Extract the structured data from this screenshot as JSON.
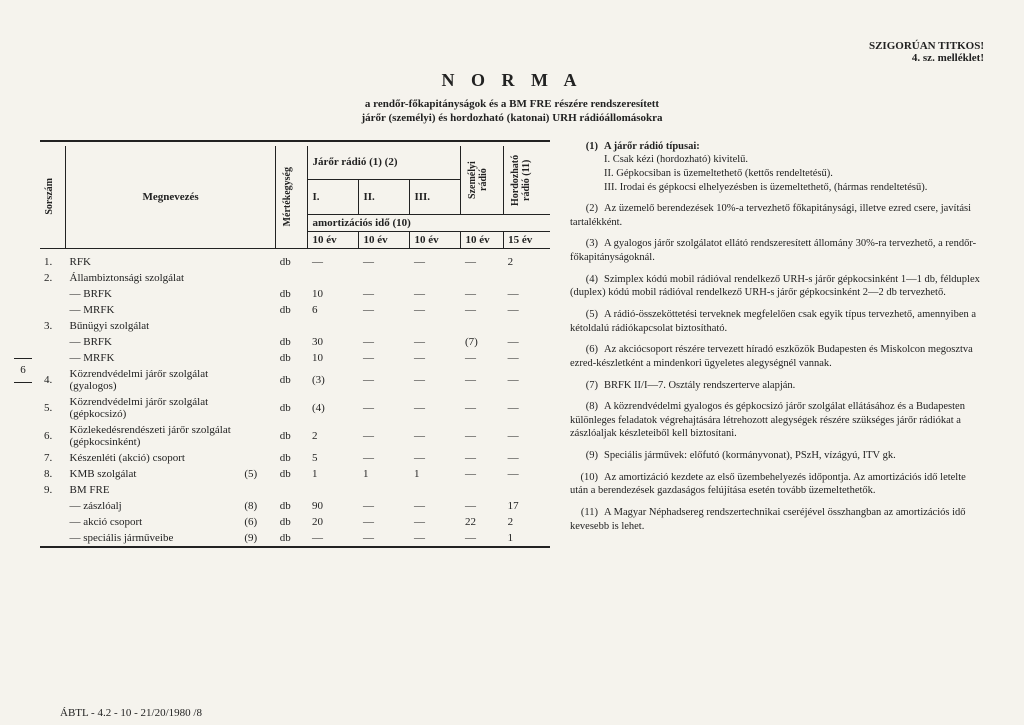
{
  "header": {
    "classification": "SZIGORÚAN TITKOS!",
    "attachment": "4. sz. melléklet!",
    "title": "N O R M A",
    "subtitle1": "a rendőr-főkapitányságok és a BM FRE részére rendszeresített",
    "subtitle2": "járőr (személyi) és hordozható (katonai) URH rádióállomásokra"
  },
  "table": {
    "head": {
      "sorszam": "Sorszám",
      "megnevezes": "Megnevezés",
      "mertek": "Mértékegység",
      "jaror": "Járőr rádió (1) (2)",
      "szemelyi": "Személyi rádió",
      "hordoz": "Hordozható rádió (11)",
      "c1": "I.",
      "c2": "II.",
      "c3": "III.",
      "amort": "amortizációs idő (10)",
      "y1": "10 év",
      "y2": "10 év",
      "y3": "10 év",
      "y4": "10 év",
      "y5": "15 év"
    },
    "rows": [
      {
        "n": "1.",
        "name": "RFK",
        "u": "db",
        "v": [
          "—",
          "—",
          "—",
          "—",
          "2"
        ]
      },
      {
        "n": "2.",
        "name": "Állambiztonsági szolgálat",
        "u": "",
        "v": [
          "",
          "",
          "",
          "",
          ""
        ]
      },
      {
        "n": "",
        "name": "— BRFK",
        "u": "db",
        "v": [
          "10",
          "—",
          "—",
          "—",
          "—"
        ],
        "ind": 1
      },
      {
        "n": "",
        "name": "— MRFK",
        "u": "db",
        "v": [
          "6",
          "—",
          "—",
          "—",
          "—"
        ],
        "ind": 1
      },
      {
        "n": "3.",
        "name": "Bűnügyi szolgálat",
        "u": "",
        "v": [
          "",
          "",
          "",
          "",
          ""
        ]
      },
      {
        "n": "",
        "name": "— BRFK",
        "u": "db",
        "v": [
          "30",
          "—",
          "—",
          "(7)",
          "—"
        ],
        "ind": 1
      },
      {
        "n": "",
        "name": "— MRFK",
        "u": "db",
        "v": [
          "10",
          "—",
          "—",
          "—",
          "—"
        ],
        "ind": 1
      },
      {
        "n": "4.",
        "name": "Közrendvédelmi járőr szolgálat (gyalogos)",
        "u": "db",
        "v": [
          "(3)",
          "—",
          "—",
          "—",
          "—"
        ]
      },
      {
        "n": "5.",
        "name": "Közrendvédelmi járőr szolgálat (gépkocsizó)",
        "u": "db",
        "v": [
          "(4)",
          "—",
          "—",
          "—",
          "—"
        ]
      },
      {
        "n": "6.",
        "name": "Közlekedésrendészeti járőr szolgálat (gépkocsinként)",
        "u": "db",
        "v": [
          "2",
          "—",
          "—",
          "—",
          "—"
        ]
      },
      {
        "n": "7.",
        "name": "Készenléti (akció) csoport",
        "u": "db",
        "v": [
          "5",
          "—",
          "—",
          "—",
          "—"
        ]
      },
      {
        "n": "8.",
        "name": "KMB szolgálat",
        "ref": "(5)",
        "u": "db",
        "v": [
          "1",
          "1",
          "1",
          "—",
          "—"
        ]
      },
      {
        "n": "9.",
        "name": "BM FRE",
        "u": "",
        "v": [
          "",
          "",
          "",
          "",
          ""
        ]
      },
      {
        "n": "",
        "name": "— zászlóalj",
        "ref": "(8)",
        "u": "db",
        "v": [
          "90",
          "—",
          "—",
          "—",
          "17"
        ],
        "ind": 1
      },
      {
        "n": "",
        "name": "— akció csoport",
        "ref": "(6)",
        "u": "db",
        "v": [
          "20",
          "—",
          "—",
          "22",
          "2"
        ],
        "ind": 1
      },
      {
        "n": "",
        "name": "— speciális járműveibe",
        "ref": "(9)",
        "u": "db",
        "v": [
          "—",
          "—",
          "—",
          "—",
          "1"
        ],
        "ind": 1
      }
    ]
  },
  "notes": {
    "title1": "A járőr rádió típusai:",
    "items": [
      {
        "n": "(1)",
        "t": "A járőr rádió típusai:",
        "sub": [
          "I. Csak kézi (hordozható) kivitelű.",
          "II. Gépkocsiban is üzemeltethető (kettős rendeltetésű).",
          "III. Irodai és gépkocsi elhelyezésben is üzemeltethető, (hármas rendeltetésű)."
        ]
      },
      {
        "n": "(2)",
        "t": "Az üzemelő berendezések 10%-a tervezhető főkapitánysági, illetve ezred csere, javítási tartalékként."
      },
      {
        "n": "(3)",
        "t": "A gyalogos járőr szolgálatot ellátó rendszeresített állomány 30%-ra tervezhető, a rendőr-főkapitányságoknál."
      },
      {
        "n": "(4)",
        "t": "Szimplex kódú mobil rádióval rendelkező URH-s járőr gépkocsinként 1—1 db, félduplex (duplex) kódú mobil rádióval rendelkező URH-s járőr gépkocsinként 2—2 db tervezhető."
      },
      {
        "n": "(5)",
        "t": "A rádió-összeköttetési terveknek megfelelően csak egyik típus tervezhető, amennyiben a kétoldalú rádiókapcsolat biztosítható."
      },
      {
        "n": "(6)",
        "t": "Az akciócsoport részére tervezett híradó eszközök Budapesten és Miskolcon megosztva ezred-készletként a mindenkori ügyeletes alegységnél vannak."
      },
      {
        "n": "(7)",
        "t": "BRFK II/I—7. Osztály rendszerterve alapján."
      },
      {
        "n": "(8)",
        "t": "A közrendvédelmi gyalogos és gépkocsizó járőr szolgálat ellátásához és a Budapesten különleges feladatok végrehajtására létrehozott alegységek részére szükséges járőr rádiókat a zászlóaljak készleteiből kell biztosítani."
      },
      {
        "n": "(9)",
        "t": "Speciális járművek: előfutó (kormányvonat), PSzH, vízágyú, ITV gk."
      },
      {
        "n": "(10)",
        "t": "Az amortizáció kezdete az első üzembehelyezés időpontja. Az amortizációs idő letelte után a berendezések gazdaságos felújítása esetén tovább üzemeltethetők."
      },
      {
        "n": "(11)",
        "t": "A Magyar Néphadsereg rendszertechnikai cseréjével összhangban az amortizációs idő kevesebb is lehet."
      }
    ]
  },
  "side_page": "6",
  "footer": "ÁBTL - 4.2 - 10 - 21/20/1980  /8",
  "dash": "—"
}
